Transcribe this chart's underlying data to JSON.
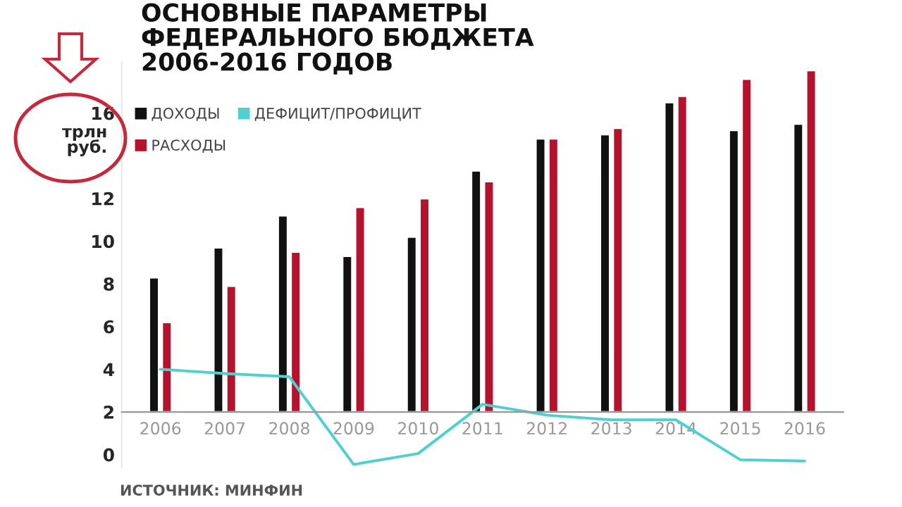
{
  "chart_data": {
    "type": "bar",
    "title": "ОСНОВНЫЕ ПАРАМЕТРЫ\nФЕДЕРАЛЬНОГО БЮДЖЕТА\n2006-2016 ГОДОВ",
    "ylabel": "трлн\nруб.",
    "categories": [
      "2006",
      "2007",
      "2008",
      "2009",
      "2010",
      "2011",
      "2012",
      "2013",
      "2014",
      "2015",
      "2016"
    ],
    "series": [
      {
        "name": "ДОХОДЫ",
        "color": "#111111",
        "base": [
          2,
          2,
          2,
          2,
          2,
          2,
          2,
          2,
          2,
          2,
          2
        ],
        "values": [
          6.3,
          7.7,
          9.2,
          7.3,
          8.2,
          11.3,
          12.8,
          13.0,
          14.5,
          13.2,
          13.5
        ]
      },
      {
        "name": "РАСХОДЫ",
        "color": "#b5122e",
        "base": [
          2,
          2,
          2,
          2,
          2,
          2,
          2,
          2,
          2,
          2,
          2
        ],
        "values": [
          4.2,
          5.9,
          7.5,
          9.6,
          10.0,
          10.8,
          12.8,
          13.3,
          14.8,
          15.6,
          16.0
        ]
      },
      {
        "name": "ДЕФИЦИТ/ПРОФИЦИТ",
        "type": "line",
        "color": "#4fd0d0",
        "values": [
          4.0,
          3.8,
          3.65,
          -0.46,
          0.05,
          2.36,
          1.85,
          1.63,
          1.63,
          -0.24,
          -0.3
        ]
      }
    ],
    "ylim": [
      -0.6,
      18.4
    ],
    "yticks": [
      0,
      2,
      4,
      6,
      8,
      10,
      12,
      16
    ],
    "grid": false,
    "legend": "top left",
    "annotations": [
      "ИСТОЧНИК: МИНФИН"
    ]
  }
}
